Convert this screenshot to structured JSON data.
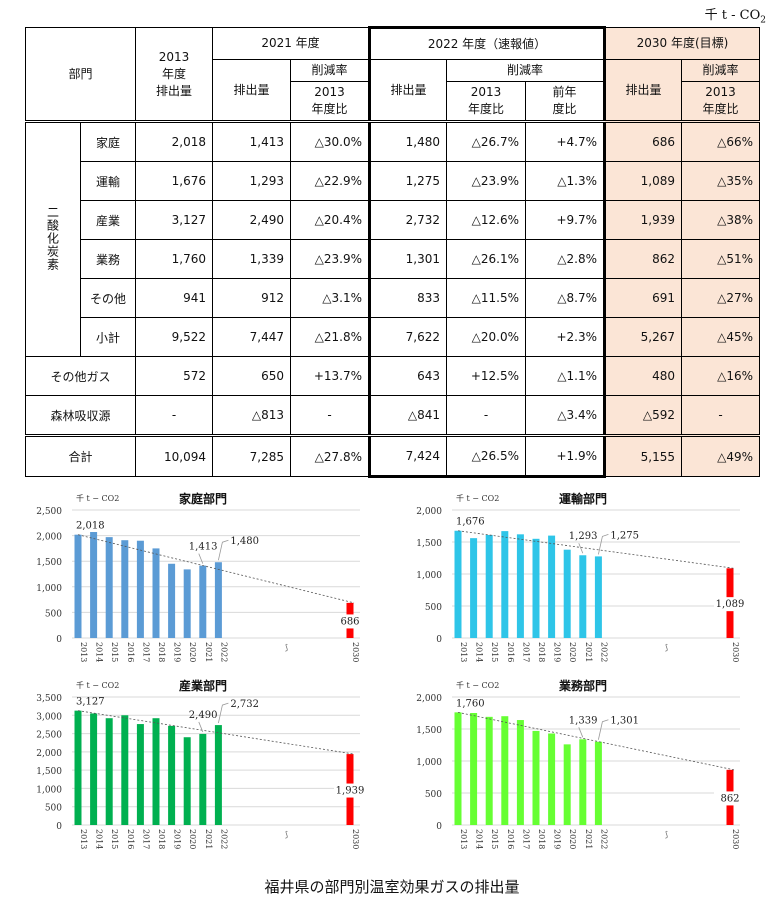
{
  "unit": {
    "prefix": "千 t - CO",
    "sub": "2"
  },
  "table": {
    "header": {
      "sector": "部門",
      "base_year": [
        "2013",
        "年度",
        "排出量"
      ],
      "y2021": "2021 年度",
      "y2022": "2022 年度（速報値）",
      "y2030": "2030 年度(目標)",
      "emissions": "排出量",
      "reduction_rate": "削減率",
      "vs2013": [
        "2013",
        "年度比"
      ],
      "vs_prev": [
        "前年",
        "度比"
      ]
    },
    "group_label": "二酸化炭素",
    "rows": [
      {
        "name": "家庭",
        "base": "2,018",
        "e2021": "1,413",
        "r2021": "△30.0%",
        "e2022": "1,480",
        "r2022_2013": "△26.7%",
        "r2022_prev": "+4.7%",
        "e2030": "686",
        "r2030": "△66%"
      },
      {
        "name": "運輸",
        "base": "1,676",
        "e2021": "1,293",
        "r2021": "△22.9%",
        "e2022": "1,275",
        "r2022_2013": "△23.9%",
        "r2022_prev": "△1.3%",
        "e2030": "1,089",
        "r2030": "△35%"
      },
      {
        "name": "産業",
        "base": "3,127",
        "e2021": "2,490",
        "r2021": "△20.4%",
        "e2022": "2,732",
        "r2022_2013": "△12.6%",
        "r2022_prev": "+9.7%",
        "e2030": "1,939",
        "r2030": "△38%"
      },
      {
        "name": "業務",
        "base": "1,760",
        "e2021": "1,339",
        "r2021": "△23.9%",
        "e2022": "1,301",
        "r2022_2013": "△26.1%",
        "r2022_prev": "△2.8%",
        "e2030": "862",
        "r2030": "△51%"
      },
      {
        "name": "その他",
        "base": "941",
        "e2021": "912",
        "r2021": "△3.1%",
        "e2022": "833",
        "r2022_2013": "△11.5%",
        "r2022_prev": "△8.7%",
        "e2030": "691",
        "r2030": "△27%"
      },
      {
        "name": "小計",
        "base": "9,522",
        "e2021": "7,447",
        "r2021": "△21.8%",
        "e2022": "7,622",
        "r2022_2013": "△20.0%",
        "r2022_prev": "+2.3%",
        "e2030": "5,267",
        "r2030": "△45%"
      }
    ],
    "other_gas": {
      "name": "その他ガス",
      "base": "572",
      "e2021": "650",
      "r2021": "+13.7%",
      "e2022": "643",
      "r2022_2013": "+12.5%",
      "r2022_prev": "△1.1%",
      "e2030": "480",
      "r2030": "△16%"
    },
    "forest": {
      "name": "森林吸収源",
      "base": "-",
      "e2021": "△813",
      "r2021": "-",
      "e2022": "△841",
      "r2022_2013": "-",
      "r2022_prev": "△3.4%",
      "e2030": "△592",
      "r2030": "-"
    },
    "total": {
      "name": "合計",
      "base": "10,094",
      "e2021": "7,285",
      "r2021": "△27.8%",
      "e2022": "7,424",
      "r2022_2013": "△26.5%",
      "r2022_prev": "+1.9%",
      "e2030": "5,155",
      "r2030": "△49%"
    }
  },
  "colors": {
    "peach": "#fbe5d6",
    "household": "#5b9bd5",
    "transport": "#2ec5e8",
    "industry": "#00b050",
    "business": "#66ff33",
    "target": "#ff0000"
  },
  "caption": "福井県の部門別温室効果ガスの排出量",
  "chart_data": [
    {
      "type": "bar",
      "title": "家庭部門",
      "ylabel": "千 t − CO2",
      "categories": [
        "2013",
        "2014",
        "2015",
        "2016",
        "2017",
        "2018",
        "2019",
        "2020",
        "2021",
        "2022",
        "2030"
      ],
      "values": [
        2018,
        2070,
        1970,
        1910,
        1900,
        1750,
        1450,
        1340,
        1413,
        1480,
        686
      ],
      "labels": {
        "2013": "2,018",
        "2021": "1,413",
        "2022": "1,480",
        "2030": "686"
      },
      "ylim": [
        0,
        2500
      ],
      "yticks": [
        "0",
        "500",
        "1,000",
        "1,500",
        "2,000",
        "2,500"
      ],
      "color": "#5b9bd5",
      "target_color": "#ff0000",
      "trendline": "dotted from 2013 to 2030",
      "grid": true
    },
    {
      "type": "bar",
      "title": "運輸部門",
      "ylabel": "千 t − CO2",
      "categories": [
        "2013",
        "2014",
        "2015",
        "2016",
        "2017",
        "2018",
        "2019",
        "2020",
        "2021",
        "2022",
        "2030"
      ],
      "values": [
        1676,
        1560,
        1610,
        1670,
        1620,
        1550,
        1600,
        1380,
        1293,
        1275,
        1089
      ],
      "labels": {
        "2013": "1,676",
        "2021": "1,293",
        "2022": "1,275",
        "2030": "1,089"
      },
      "ylim": [
        0,
        2000
      ],
      "yticks": [
        "0",
        "500",
        "1,000",
        "1,500",
        "2,000"
      ],
      "color": "#2ec5e8",
      "target_color": "#ff0000",
      "trendline": "dotted from 2013 to 2030",
      "grid": true
    },
    {
      "type": "bar",
      "title": "産業部門",
      "ylabel": "千 t − CO2",
      "categories": [
        "2013",
        "2014",
        "2015",
        "2016",
        "2017",
        "2018",
        "2019",
        "2020",
        "2021",
        "2022",
        "2030"
      ],
      "values": [
        3127,
        3050,
        2920,
        3000,
        2760,
        2920,
        2710,
        2400,
        2490,
        2732,
        1939
      ],
      "labels": {
        "2013": "3,127",
        "2021": "2,490",
        "2022": "2,732",
        "2030": "1,939"
      },
      "ylim": [
        0,
        3500
      ],
      "yticks": [
        "0",
        "500",
        "1,000",
        "1,500",
        "2,000",
        "2,500",
        "3,000",
        "3,500"
      ],
      "color": "#00b050",
      "target_color": "#ff0000",
      "trendline": "dotted from 2013 to 2030",
      "grid": true
    },
    {
      "type": "bar",
      "title": "業務部門",
      "ylabel": "千 t − CO2",
      "categories": [
        "2013",
        "2014",
        "2015",
        "2016",
        "2017",
        "2018",
        "2019",
        "2020",
        "2021",
        "2022",
        "2030"
      ],
      "values": [
        1760,
        1750,
        1690,
        1700,
        1640,
        1470,
        1430,
        1260,
        1339,
        1301,
        862
      ],
      "labels": {
        "2013": "1,760",
        "2021": "1,339",
        "2022": "1,301",
        "2030": "862"
      },
      "ylim": [
        0,
        2000
      ],
      "yticks": [
        "0",
        "500",
        "1,000",
        "1,500",
        "2,000"
      ],
      "color": "#66ff33",
      "target_color": "#ff0000",
      "trendline": "dotted from 2013 to 2030",
      "grid": true
    }
  ]
}
